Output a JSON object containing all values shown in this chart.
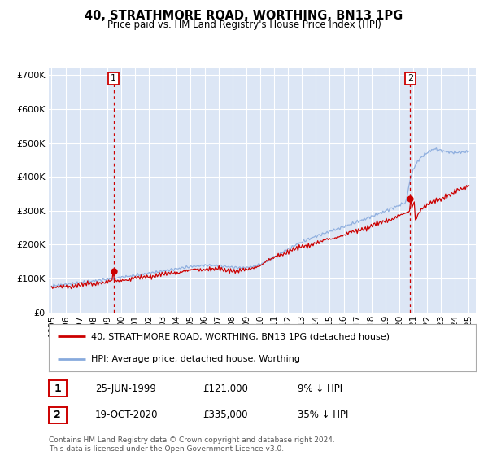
{
  "title": "40, STRATHMORE ROAD, WORTHING, BN13 1PG",
  "subtitle": "Price paid vs. HM Land Registry's House Price Index (HPI)",
  "ylim": [
    0,
    720000
  ],
  "yticks": [
    0,
    100000,
    200000,
    300000,
    400000,
    500000,
    600000,
    700000
  ],
  "ytick_labels": [
    "£0",
    "£100K",
    "£200K",
    "£300K",
    "£400K",
    "£500K",
    "£600K",
    "£700K"
  ],
  "fig_bg_color": "#ffffff",
  "plot_bg_color": "#dce6f5",
  "grid_color": "#ffffff",
  "line_red_color": "#cc0000",
  "line_blue_color": "#88aadd",
  "sale1_year": 1999.46,
  "sale1_price": 121000,
  "sale2_year": 2020.79,
  "sale2_price": 335000,
  "legend_line1": "40, STRATHMORE ROAD, WORTHING, BN13 1PG (detached house)",
  "legend_line2": "HPI: Average price, detached house, Worthing",
  "annotation1_label": "1",
  "annotation1_date": "25-JUN-1999",
  "annotation1_price": "£121,000",
  "annotation1_hpi": "9% ↓ HPI",
  "annotation2_label": "2",
  "annotation2_date": "19-OCT-2020",
  "annotation2_price": "£335,000",
  "annotation2_hpi": "35% ↓ HPI",
  "footer": "Contains HM Land Registry data © Crown copyright and database right 2024.\nThis data is licensed under the Open Government Licence v3.0.",
  "xmin_year": 1994.8,
  "xmax_year": 2025.5,
  "xtick_years": [
    1995,
    1996,
    1997,
    1998,
    1999,
    2000,
    2001,
    2002,
    2003,
    2004,
    2005,
    2006,
    2007,
    2008,
    2009,
    2010,
    2011,
    2012,
    2013,
    2014,
    2015,
    2016,
    2017,
    2018,
    2019,
    2020,
    2021,
    2022,
    2023,
    2024,
    2025
  ]
}
